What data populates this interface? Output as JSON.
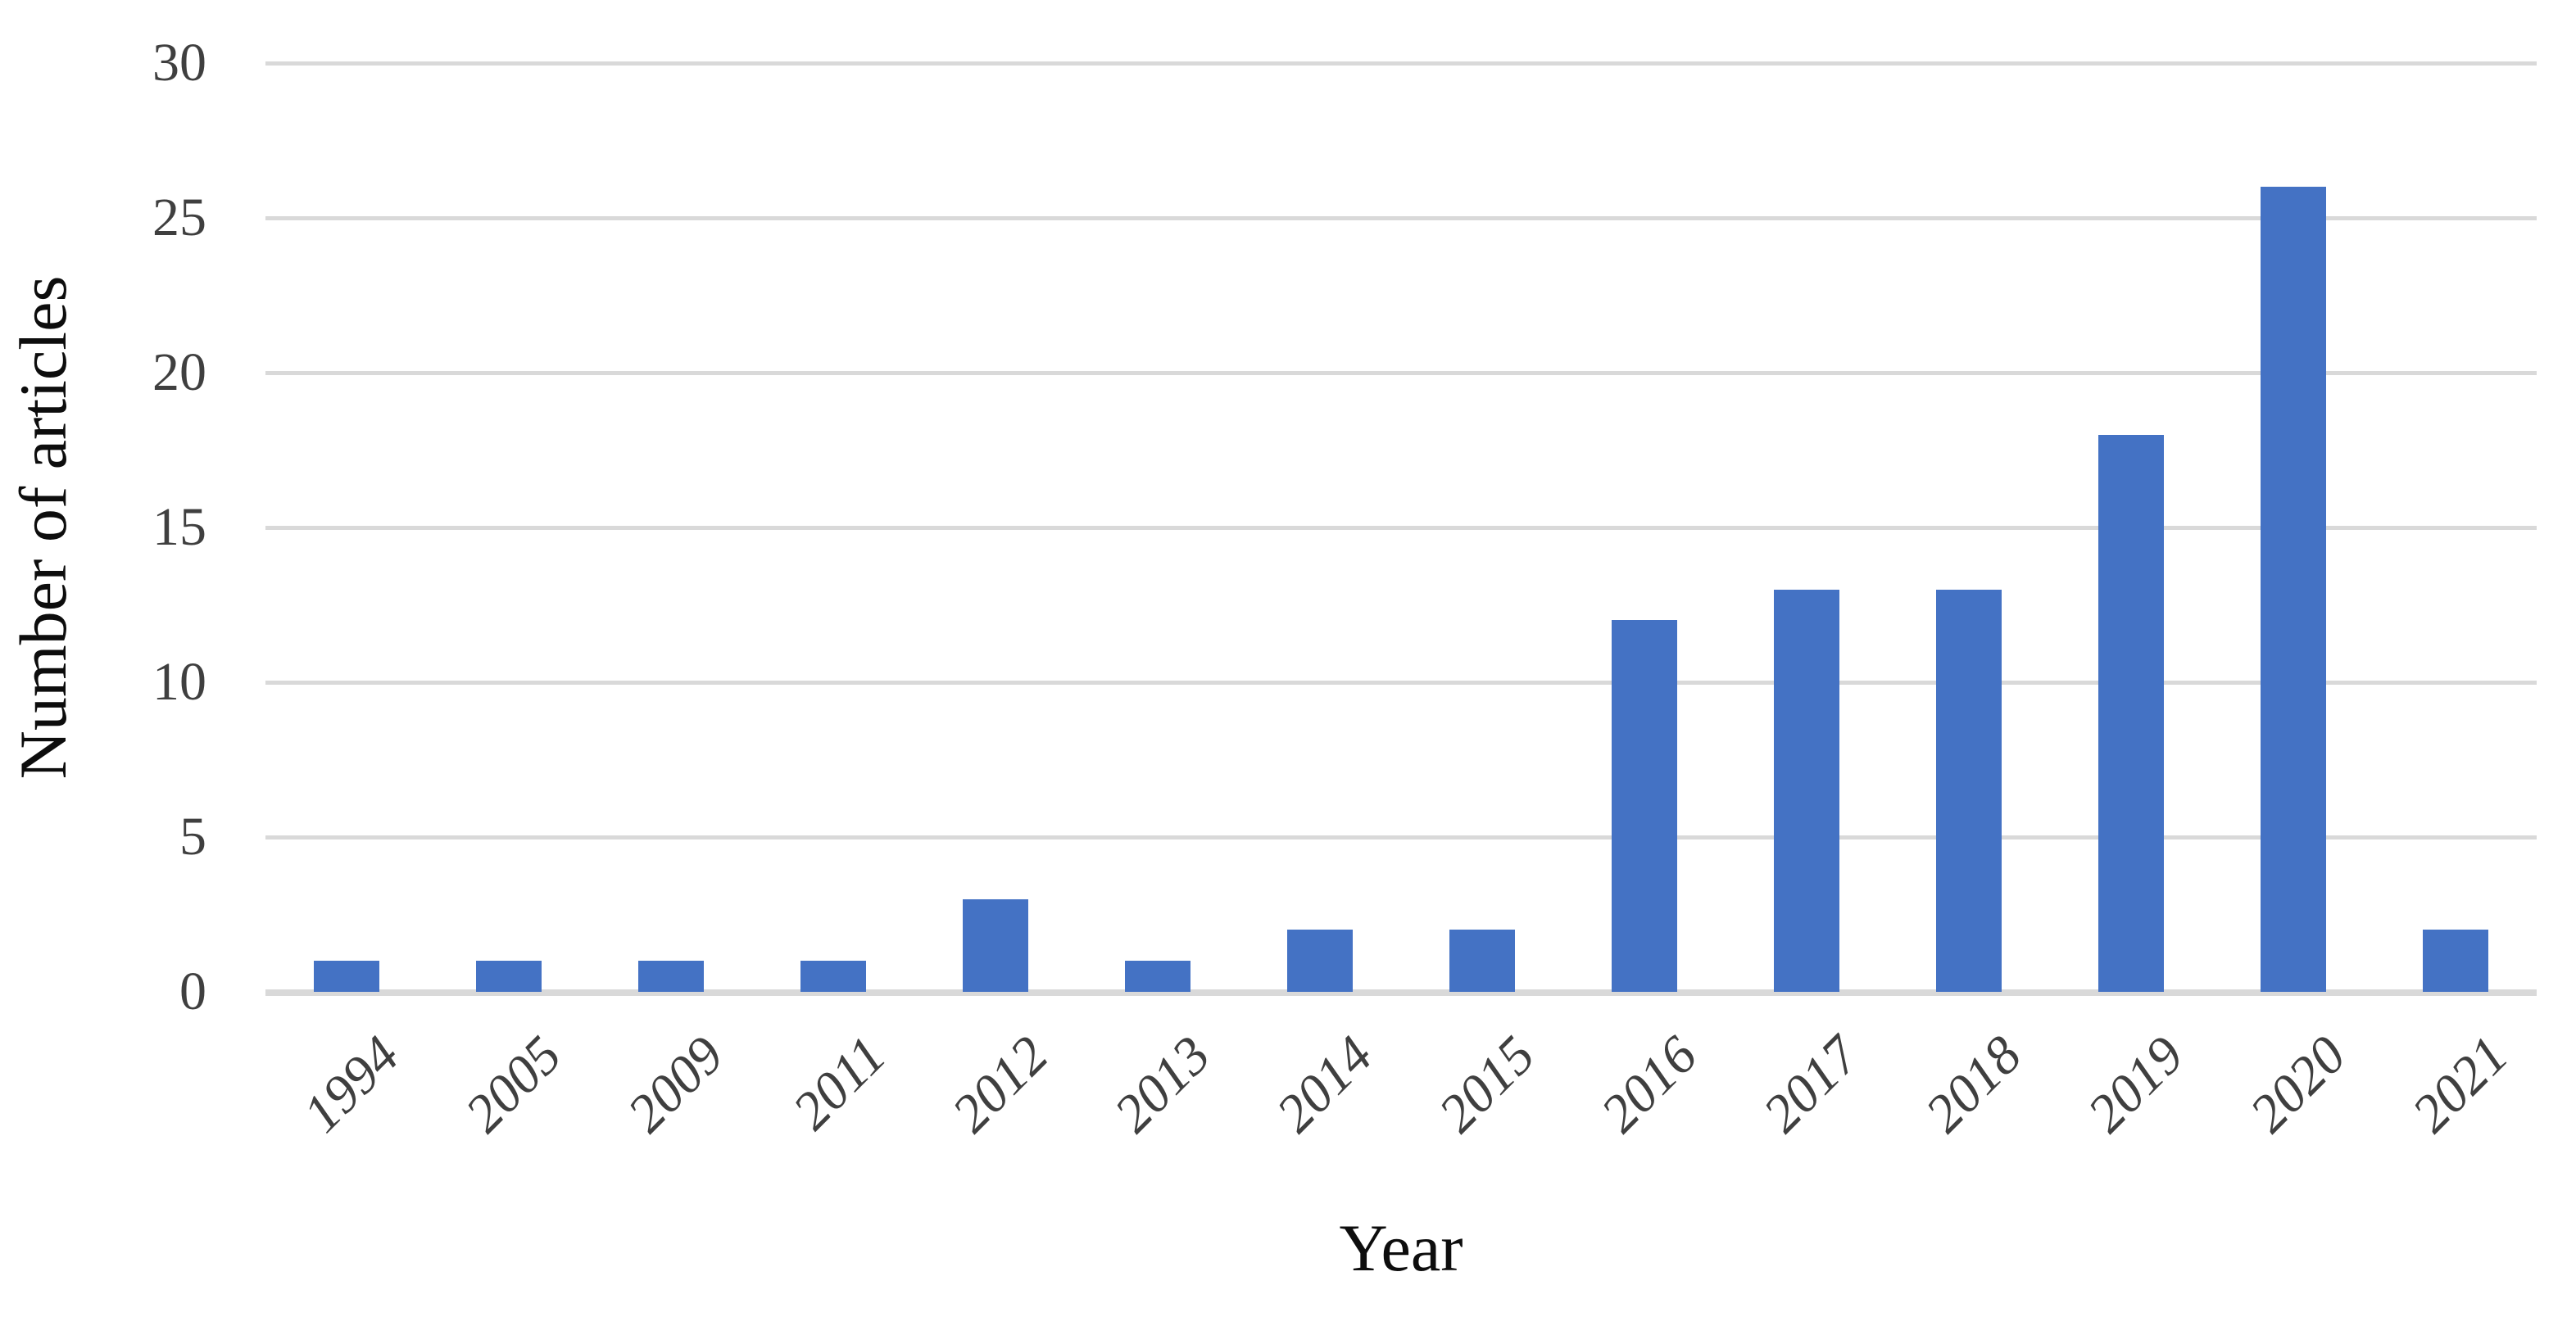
{
  "chart_data": {
    "type": "bar",
    "title": "",
    "categories": [
      "1994",
      "2005",
      "2009",
      "2011",
      "2012",
      "2013",
      "2014",
      "2015",
      "2016",
      "2017",
      "2018",
      "2019",
      "2020",
      "2021"
    ],
    "values": [
      1,
      1,
      1,
      1,
      3,
      1,
      2,
      2,
      12,
      13,
      13,
      18,
      26,
      2
    ],
    "xlabel": "Year",
    "ylabel": "Number of articles",
    "yticks": [
      0,
      5,
      10,
      15,
      20,
      25,
      30
    ],
    "ylim": [
      0,
      30
    ],
    "grid": true,
    "legend": false,
    "layout": {
      "x_tick_rotation_deg": -45,
      "x_tick_style": "italic"
    },
    "colors": {
      "bar": "#4472C4",
      "gridline": "#D9D9D9",
      "axis_line": "#D9D9D9",
      "tick_text": "#3F3F3F",
      "title_text": "#0D0D0D",
      "background": "#FFFFFF"
    }
  }
}
